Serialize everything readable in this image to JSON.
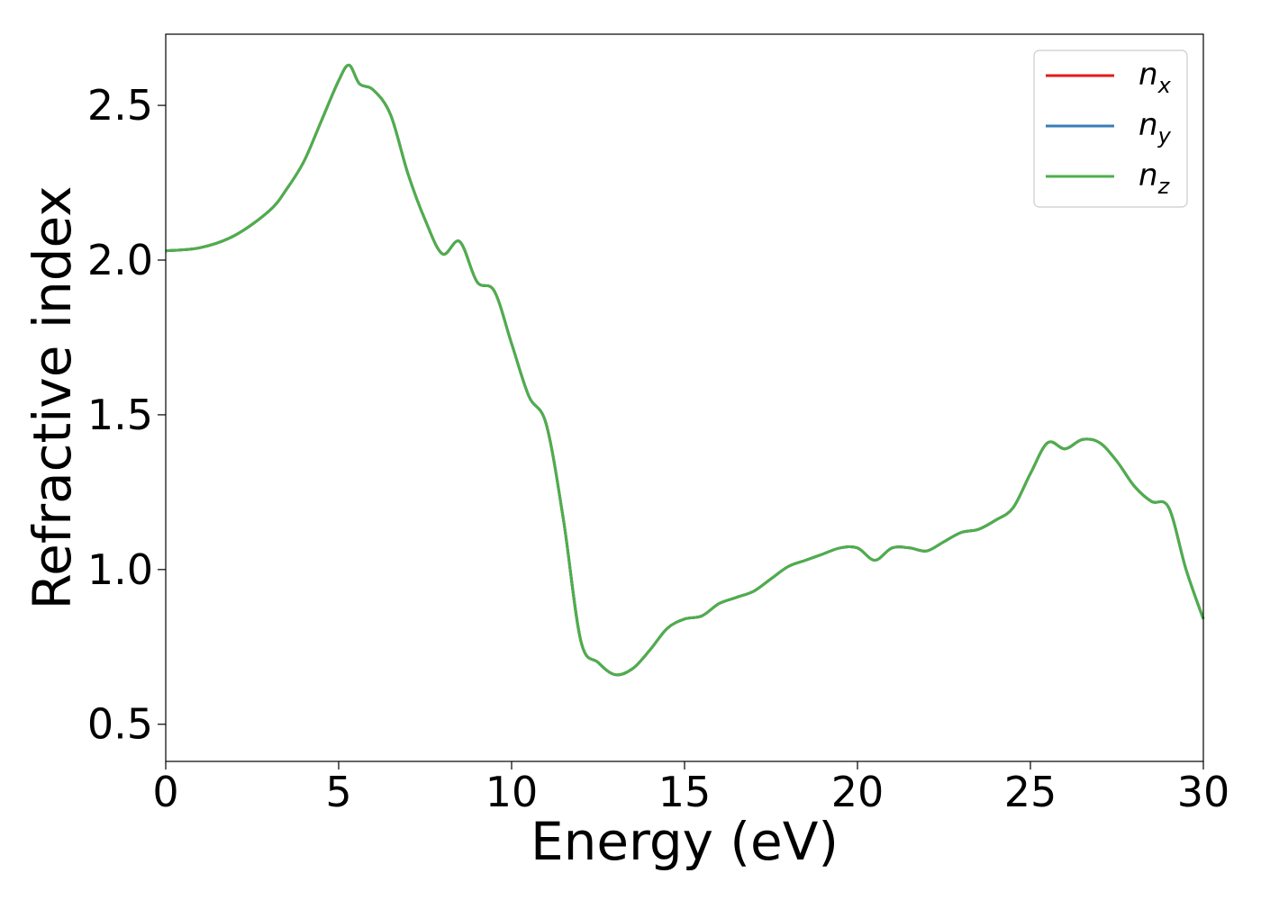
{
  "chart_data": {
    "type": "line",
    "title": "",
    "xlabel": "Energy (eV)",
    "ylabel": "Refractive index",
    "xlim": [
      0,
      30
    ],
    "ylim": [
      0.38,
      2.73
    ],
    "xticks": [
      0,
      5,
      10,
      15,
      20,
      25,
      30
    ],
    "xtick_labels": [
      "0",
      "5",
      "10",
      "15",
      "20",
      "25",
      "30"
    ],
    "yticks": [
      0.5,
      1.0,
      1.5,
      2.0,
      2.5
    ],
    "ytick_labels": [
      "0.5",
      "1.0",
      "1.5",
      "2.0",
      "2.5"
    ],
    "grid": false,
    "legend_position": "top-right",
    "x": [
      0,
      1,
      2,
      3,
      3.5,
      4,
      4.5,
      5,
      5.3,
      5.6,
      6,
      6.5,
      7,
      7.5,
      8,
      8.5,
      9,
      9.5,
      10,
      10.5,
      11,
      11.5,
      12,
      12.5,
      13,
      13.5,
      14,
      14.5,
      15,
      15.5,
      16,
      16.5,
      17,
      17.5,
      18,
      18.5,
      19,
      19.5,
      20,
      20.5,
      21,
      21.5,
      22,
      22.5,
      23,
      23.5,
      24,
      24.5,
      25,
      25.5,
      26,
      26.5,
      27,
      27.5,
      28,
      28.5,
      29,
      29.5,
      30
    ],
    "series": [
      {
        "name_main": "n",
        "name_sub": "x",
        "color": "#e41a1c",
        "values": [
          2.03,
          2.04,
          2.08,
          2.16,
          2.23,
          2.32,
          2.45,
          2.58,
          2.63,
          2.57,
          2.55,
          2.47,
          2.28,
          2.13,
          2.02,
          2.06,
          1.93,
          1.9,
          1.73,
          1.56,
          1.47,
          1.16,
          0.77,
          0.7,
          0.66,
          0.68,
          0.74,
          0.81,
          0.84,
          0.85,
          0.89,
          0.91,
          0.93,
          0.97,
          1.01,
          1.03,
          1.05,
          1.07,
          1.07,
          1.03,
          1.07,
          1.07,
          1.06,
          1.09,
          1.12,
          1.13,
          1.16,
          1.2,
          1.31,
          1.41,
          1.39,
          1.42,
          1.41,
          1.35,
          1.27,
          1.22,
          1.2,
          1.0,
          0.84
        ]
      },
      {
        "name_main": "n",
        "name_sub": "y",
        "color": "#377eb8",
        "values": [
          2.03,
          2.04,
          2.08,
          2.16,
          2.23,
          2.32,
          2.45,
          2.58,
          2.63,
          2.57,
          2.55,
          2.47,
          2.28,
          2.13,
          2.02,
          2.06,
          1.93,
          1.9,
          1.73,
          1.56,
          1.47,
          1.16,
          0.77,
          0.7,
          0.66,
          0.68,
          0.74,
          0.81,
          0.84,
          0.85,
          0.89,
          0.91,
          0.93,
          0.97,
          1.01,
          1.03,
          1.05,
          1.07,
          1.07,
          1.03,
          1.07,
          1.07,
          1.06,
          1.09,
          1.12,
          1.13,
          1.16,
          1.2,
          1.31,
          1.41,
          1.39,
          1.42,
          1.41,
          1.35,
          1.27,
          1.22,
          1.2,
          1.0,
          0.84
        ]
      },
      {
        "name_main": "n",
        "name_sub": "z",
        "color": "#4daf4a",
        "values": [
          2.03,
          2.04,
          2.08,
          2.16,
          2.23,
          2.32,
          2.45,
          2.58,
          2.63,
          2.57,
          2.55,
          2.47,
          2.28,
          2.13,
          2.02,
          2.06,
          1.93,
          1.9,
          1.73,
          1.56,
          1.47,
          1.16,
          0.77,
          0.7,
          0.66,
          0.68,
          0.74,
          0.81,
          0.84,
          0.85,
          0.89,
          0.91,
          0.93,
          0.97,
          1.01,
          1.03,
          1.05,
          1.07,
          1.07,
          1.03,
          1.07,
          1.07,
          1.06,
          1.09,
          1.12,
          1.13,
          1.16,
          1.2,
          1.31,
          1.41,
          1.39,
          1.42,
          1.41,
          1.35,
          1.27,
          1.22,
          1.2,
          1.0,
          0.84
        ]
      }
    ]
  }
}
